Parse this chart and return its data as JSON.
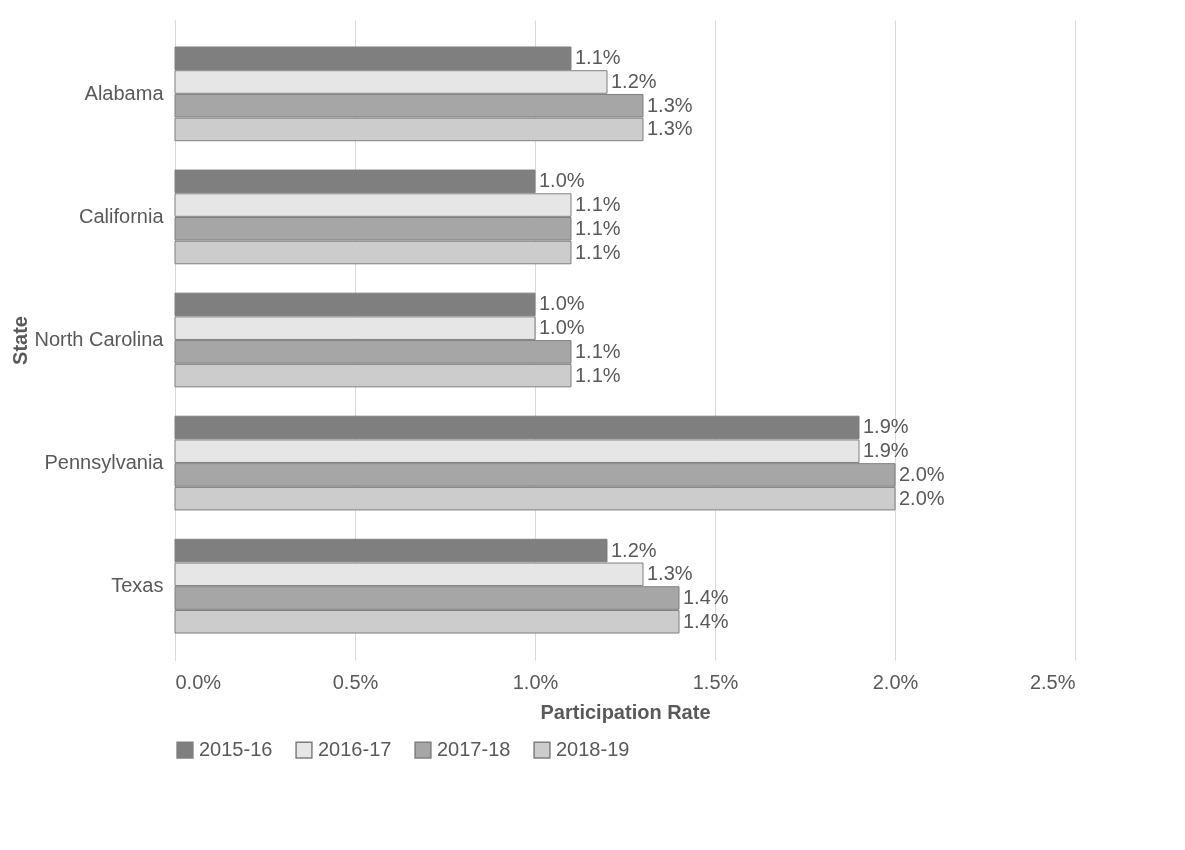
{
  "chart_data": {
    "type": "bar",
    "orientation": "horizontal",
    "xlabel": "Participation Rate",
    "ylabel": "State",
    "categories": [
      "Alabama",
      "California",
      "North Carolina",
      "Pennsylvania",
      "Texas"
    ],
    "series": [
      {
        "name": "2015-16",
        "color": "#7f7f7f",
        "values": [
          1.1,
          1.0,
          1.0,
          1.9,
          1.2
        ],
        "value_labels": [
          "1.1%",
          "1.0%",
          "1.0%",
          "1.9%",
          "1.2%"
        ]
      },
      {
        "name": "2016-17",
        "color": "#e6e6e6",
        "values": [
          1.2,
          1.1,
          1.0,
          1.9,
          1.3
        ],
        "value_labels": [
          "1.2%",
          "1.1%",
          "1.0%",
          "1.9%",
          "1.3%"
        ]
      },
      {
        "name": "2017-18",
        "color": "#a6a6a6",
        "values": [
          1.3,
          1.1,
          1.1,
          2.0,
          1.4
        ],
        "value_labels": [
          "1.3%",
          "1.1%",
          "1.1%",
          "2.0%",
          "1.4%"
        ]
      },
      {
        "name": "2018-19",
        "color": "#cccccc",
        "values": [
          1.3,
          1.1,
          1.1,
          2.0,
          1.4
        ],
        "value_labels": [
          "1.3%",
          "1.1%",
          "1.1%",
          "2.0%",
          "1.4%"
        ]
      }
    ],
    "xlim": [
      0,
      2.5
    ],
    "xticks": [
      {
        "value": 0,
        "label": "0.0%"
      },
      {
        "value": 0.5,
        "label": "0.5%"
      },
      {
        "value": 1.0,
        "label": "1.0%"
      },
      {
        "value": 1.5,
        "label": "1.5%"
      },
      {
        "value": 2.0,
        "label": "2.0%"
      },
      {
        "value": 2.5,
        "label": "2.5%"
      }
    ],
    "grid": "x",
    "legend": "bottom"
  }
}
